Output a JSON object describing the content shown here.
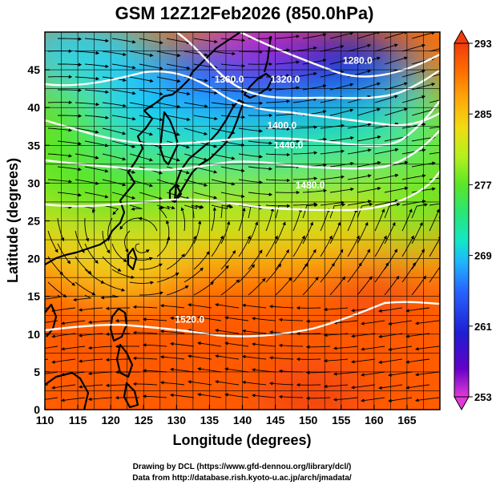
{
  "figure": {
    "title": "GSM 12Z12Feb2026 (850.0hPa)",
    "xlabel": "Longitude (degrees)",
    "ylabel": "Latitude  (degrees)",
    "credit_line1": "Drawing by DCL (https://www.gfd-dennou.org/library/dcl/)",
    "credit_line2": "Data from http://database.rish.kyoto-u.ac.jp/arch/jmadata/"
  },
  "chart_data": {
    "type": "heatmap",
    "variable_shading": "temperature",
    "variable_contours": "geopotential height",
    "xlim": [
      110,
      170
    ],
    "ylim": [
      0,
      50
    ],
    "x_ticks": [
      "110",
      "115",
      "120",
      "125",
      "130",
      "135",
      "140",
      "145",
      "150",
      "155",
      "160",
      "165"
    ],
    "y_ticks": [
      "0",
      "5",
      "10",
      "15",
      "20",
      "25",
      "30",
      "35",
      "40",
      "45"
    ],
    "grid": true,
    "colorbar": {
      "placement": "right",
      "range": [
        253,
        293
      ],
      "tick_labels": [
        "293",
        "285",
        "277",
        "269",
        "261",
        "253"
      ],
      "colors": [
        "#e23ad9",
        "#6400c8",
        "#1e1ed2",
        "#2864ff",
        "#1eb4ff",
        "#14e6c8",
        "#28e678",
        "#5ae628",
        "#b4f01e",
        "#f0dc14",
        "#ffaa0a",
        "#ff6e00",
        "#f03c0a"
      ]
    },
    "contour_labels": [
      {
        "text": "1280.0",
        "lon": 157.5,
        "lat": 45.8
      },
      {
        "text": "1320.0",
        "lon": 146.5,
        "lat": 43.3
      },
      {
        "text": "1360.0",
        "lon": 138.0,
        "lat": 43.3
      },
      {
        "text": "1400.0",
        "lon": 146.0,
        "lat": 37.2
      },
      {
        "text": "1440.0",
        "lon": 147.0,
        "lat": 34.6
      },
      {
        "text": "1480.0",
        "lon": 150.3,
        "lat": 29.3
      },
      {
        "text": "1520.0",
        "lon": 132.0,
        "lat": 11.5
      }
    ]
  }
}
